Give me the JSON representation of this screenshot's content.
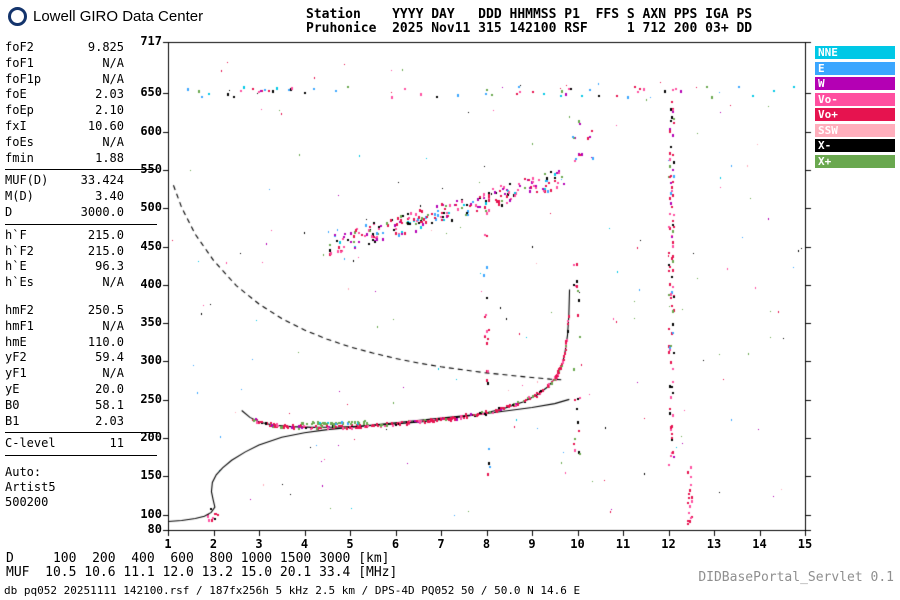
{
  "header": {
    "logo_text": "Lowell GIRO Data Center",
    "line1": "Station    YYYY DAY   DDD HHMMSS P1  FFS S AXN PPS IGA PS",
    "line2": "Pruhonice  2025 Nov11 315 142100 RSF     1 712 200 03+ DD"
  },
  "params": {
    "groups": [
      {
        "rule_after": true,
        "gap_after": false,
        "rows": [
          {
            "label": "foF2",
            "value": "9.825"
          },
          {
            "label": "foF1",
            "value": "N/A"
          },
          {
            "label": "foF1p",
            "value": "N/A"
          },
          {
            "label": "foE",
            "value": "2.03"
          },
          {
            "label": "foEp",
            "value": "2.10"
          },
          {
            "label": "fxI",
            "value": "10.60"
          },
          {
            "label": "foEs",
            "value": "N/A"
          },
          {
            "label": "fmin",
            "value": "1.88"
          }
        ]
      },
      {
        "rule_after": true,
        "gap_after": false,
        "rows": [
          {
            "label": "MUF(D)",
            "value": "33.424"
          },
          {
            "label": "M(D)",
            "value": "3.40"
          },
          {
            "label": "D",
            "value": "3000.0"
          }
        ]
      },
      {
        "rule_after": false,
        "gap_after": true,
        "rows": [
          {
            "label": "h`F",
            "value": "215.0"
          },
          {
            "label": "h`F2",
            "value": "215.0"
          },
          {
            "label": "h`E",
            "value": "96.3"
          },
          {
            "label": "h`Es",
            "value": "N/A"
          }
        ]
      },
      {
        "rule_after": true,
        "gap_after": false,
        "rows": [
          {
            "label": "hmF2",
            "value": "250.5"
          },
          {
            "label": "hmF1",
            "value": "N/A"
          },
          {
            "label": "hmE",
            "value": "110.0"
          },
          {
            "label": "yF2",
            "value": "59.4"
          },
          {
            "label": "yF1",
            "value": "N/A"
          },
          {
            "label": "yE",
            "value": "20.0"
          },
          {
            "label": "B0",
            "value": "58.1"
          },
          {
            "label": "B1",
            "value": "2.03"
          }
        ]
      },
      {
        "rule_after": true,
        "gap_after": false,
        "rows": [
          {
            "label": "C-level",
            "value": "11"
          }
        ]
      }
    ],
    "auto_label": "Auto:",
    "auto_lines": [
      "Artist5",
      "500200"
    ]
  },
  "legend": {
    "items": [
      {
        "label": "NNE",
        "color": "#00c8e6"
      },
      {
        "label": "E",
        "color": "#3ba6ff"
      },
      {
        "label": "W",
        "color": "#b400b4"
      },
      {
        "label": "Vo-",
        "color": "#ff4fa0"
      },
      {
        "label": "Vo+",
        "color": "#e6134f"
      },
      {
        "label": "SSW",
        "color": "#ffaebc"
      },
      {
        "label": "X-",
        "color": "#000000"
      },
      {
        "label": "X+",
        "color": "#6aa84f"
      }
    ]
  },
  "footer": {
    "d_row": {
      "label": "D",
      "values": [
        "100",
        "200",
        "400",
        "600",
        "800",
        "1000",
        "1500",
        "3000"
      ],
      "unit": "[km]"
    },
    "muf_row": {
      "label": "MUF",
      "values": [
        "10.5",
        "10.6",
        "11.1",
        "12.0",
        "13.2",
        "15.0",
        "20.1",
        "33.4"
      ],
      "unit": "[MHz]"
    },
    "info_line": "db pq052 20251111 142100.rsf / 187fx256h 5 kHz 2.5 km / DPS-4D PQ052 50 / 50.0 N 14.6 E",
    "servlet_label": "DIDBasePortal_Servlet 0.1"
  },
  "chart_data": {
    "type": "scatter",
    "x_unit": "MHz",
    "y_unit": "km",
    "xlim": [
      1,
      15
    ],
    "ylim": [
      80,
      717
    ],
    "x_ticks": [
      1,
      2,
      3,
      4,
      5,
      6,
      7,
      8,
      9,
      10,
      11,
      12,
      13,
      14,
      15
    ],
    "y_ticks": [
      80,
      100,
      150,
      200,
      250,
      300,
      350,
      400,
      450,
      500,
      550,
      600,
      650,
      717
    ],
    "grid": false,
    "legend_position": "outside-right-top",
    "curves": [
      {
        "name": "true-height-profile",
        "style": "solid",
        "points": [
          [
            1.0,
            91
          ],
          [
            1.3,
            92.5
          ],
          [
            1.6,
            95
          ],
          [
            1.8,
            98
          ],
          [
            1.95,
            103
          ],
          [
            2.03,
            110
          ],
          [
            1.99,
            120
          ],
          [
            1.955,
            130
          ],
          [
            1.975,
            142
          ],
          [
            2.06,
            152
          ],
          [
            2.2,
            161
          ],
          [
            2.4,
            171
          ],
          [
            2.7,
            182
          ],
          [
            3.0,
            191
          ],
          [
            3.5,
            201
          ],
          [
            4.0,
            207
          ],
          [
            4.5,
            211
          ],
          [
            5.0,
            214
          ],
          [
            6.0,
            220
          ],
          [
            7.0,
            226
          ],
          [
            8.0,
            232
          ],
          [
            9.0,
            240
          ],
          [
            9.5,
            245
          ],
          [
            9.82,
            250.5
          ]
        ]
      },
      {
        "name": "otrace-fit",
        "style": "solid",
        "points": [
          [
            2.62,
            236
          ],
          [
            2.8,
            227
          ],
          [
            3.0,
            221
          ],
          [
            3.3,
            217
          ],
          [
            3.7,
            215
          ],
          [
            4.2,
            214
          ],
          [
            4.8,
            214.5
          ],
          [
            5.4,
            216
          ],
          [
            6.0,
            218.5
          ],
          [
            6.6,
            221.5
          ],
          [
            7.1,
            225
          ],
          [
            7.6,
            229
          ],
          [
            8.0,
            233
          ],
          [
            8.4,
            239
          ],
          [
            8.8,
            247
          ],
          [
            9.1,
            256
          ],
          [
            9.35,
            267
          ],
          [
            9.55,
            281
          ],
          [
            9.65,
            294
          ],
          [
            9.72,
            310
          ],
          [
            9.78,
            334
          ],
          [
            9.81,
            360
          ],
          [
            9.825,
            394
          ]
        ]
      },
      {
        "name": "muf3000-transmission",
        "style": "dashed",
        "points": [
          [
            1.12,
            530
          ],
          [
            1.3,
            501
          ],
          [
            1.6,
            466
          ],
          [
            2.0,
            432
          ],
          [
            2.5,
            399
          ],
          [
            3.0,
            375
          ],
          [
            3.5,
            356
          ],
          [
            4.0,
            341
          ],
          [
            4.5,
            329
          ],
          [
            5.0,
            319
          ],
          [
            5.5,
            311
          ],
          [
            6.0,
            304
          ],
          [
            6.5,
            298
          ],
          [
            7.0,
            293
          ],
          [
            7.5,
            289
          ],
          [
            8.0,
            285
          ],
          [
            8.5,
            282
          ],
          [
            9.0,
            279
          ],
          [
            9.4,
            277
          ],
          [
            9.7,
            276
          ]
        ]
      }
    ],
    "echo_bands": [
      {
        "name": "F-region-O-trace-echoes",
        "follow": "otrace-fit",
        "f_min": 2.85,
        "f_max": 9.82,
        "count": 260,
        "jitter": 2.2,
        "size": 2,
        "colors": [
          [
            "#e6134f",
            55
          ],
          [
            "#ff4fa0",
            18
          ],
          [
            "#b400b4",
            9
          ],
          [
            "#000000",
            8
          ],
          [
            "#6aa84f",
            10
          ]
        ]
      },
      {
        "name": "F-trace-asymptote-echoes",
        "follow": "otrace-fit",
        "f_min": 9.5,
        "f_max": 9.82,
        "count": 45,
        "jitter": 3,
        "size": 2,
        "colors": [
          [
            "#e6134f",
            60
          ],
          [
            "#ff4fa0",
            20
          ],
          [
            "#000000",
            10
          ],
          [
            "#6aa84f",
            10
          ]
        ]
      },
      {
        "name": "X-trace-segment",
        "follow": "otrace-fit",
        "offset": 5,
        "f_min": 3.9,
        "f_max": 5.4,
        "count": 45,
        "jitter": 1.5,
        "size": 2,
        "colors": [
          [
            "#6aa84f",
            70
          ],
          [
            "#3ba6ff",
            15
          ],
          [
            "#00c8e6",
            15
          ]
        ]
      }
    ],
    "clusters": [
      {
        "name": "spread-F-oblique-band",
        "f_min": 4.55,
        "f_max": 9.7,
        "h_at_fmin": 451,
        "h_at_fmax": 540,
        "spread": 26,
        "count": 240,
        "size": 2,
        "colors": [
          [
            "#ff4fa0",
            26
          ],
          [
            "#e6134f",
            22
          ],
          [
            "#b400b4",
            16
          ],
          [
            "#3ba6ff",
            10
          ],
          [
            "#00c8e6",
            6
          ],
          [
            "#6aa84f",
            9
          ],
          [
            "#000000",
            11
          ]
        ]
      },
      {
        "name": "rfi-column-12.1",
        "f_min": 12.01,
        "f_max": 12.13,
        "h_at_fmin": 400,
        "h_at_fmax": 400,
        "spread": 480,
        "count": 95,
        "size": 2,
        "colors": [
          [
            "#e6134f",
            40
          ],
          [
            "#ff4fa0",
            20
          ],
          [
            "#000000",
            15
          ],
          [
            "#b400b4",
            10
          ],
          [
            "#6aa84f",
            8
          ],
          [
            "#3ba6ff",
            7
          ]
        ]
      },
      {
        "name": "rfi-column-12.45",
        "f_min": 12.42,
        "f_max": 12.52,
        "h_at_fmin": 127,
        "h_at_fmax": 127,
        "spread": 82,
        "count": 18,
        "size": 2,
        "colors": [
          [
            "#ff4fa0",
            55
          ],
          [
            "#e6134f",
            45
          ]
        ]
      },
      {
        "name": "rfi-column-10",
        "f_min": 9.92,
        "f_max": 10.05,
        "h_at_fmin": 300,
        "h_at_fmax": 300,
        "spread": 260,
        "count": 22,
        "size": 2,
        "colors": [
          [
            "#e6134f",
            35
          ],
          [
            "#000000",
            25
          ],
          [
            "#6aa84f",
            20
          ],
          [
            "#ff4fa0",
            20
          ]
        ]
      },
      {
        "name": "rfi-column-8",
        "f_min": 7.95,
        "f_max": 8.08,
        "h_at_fmin": 330,
        "h_at_fmax": 330,
        "spread": 380,
        "count": 26,
        "size": 2,
        "colors": [
          [
            "#e6134f",
            30
          ],
          [
            "#ff4fa0",
            20
          ],
          [
            "#000000",
            20
          ],
          [
            "#3ba6ff",
            15
          ],
          [
            "#6aa84f",
            15
          ]
        ]
      },
      {
        "name": "rfi-row-650km",
        "f_min": 1.05,
        "f_max": 14.9,
        "h_at_fmin": 652,
        "h_at_fmax": 652,
        "spread": 14,
        "count": 60,
        "size": 2,
        "colors": [
          [
            "#e6134f",
            18
          ],
          [
            "#ff4fa0",
            15
          ],
          [
            "#6aa84f",
            15
          ],
          [
            "#3ba6ff",
            14
          ],
          [
            "#00c8e6",
            10
          ],
          [
            "#000000",
            16
          ],
          [
            "#b400b4",
            12
          ]
        ]
      },
      {
        "name": "e-region-echoes",
        "f_min": 1.88,
        "f_max": 2.12,
        "h_at_fmin": 100,
        "h_at_fmax": 100,
        "spread": 18,
        "count": 10,
        "size": 2,
        "colors": [
          [
            "#e6134f",
            50
          ],
          [
            "#ff4fa0",
            30
          ],
          [
            "#000000",
            20
          ]
        ]
      },
      {
        "name": "cluster-10mhz-600km",
        "f_min": 9.88,
        "f_max": 10.35,
        "h_at_fmin": 590,
        "h_at_fmax": 590,
        "spread": 60,
        "count": 14,
        "size": 2,
        "colors": [
          [
            "#e6134f",
            30
          ],
          [
            "#b400b4",
            20
          ],
          [
            "#3ba6ff",
            20
          ],
          [
            "#6aa84f",
            15
          ],
          [
            "#ff4fa0",
            15
          ]
        ]
      },
      {
        "name": "background-noise",
        "f_min": 1.03,
        "f_max": 14.95,
        "h_at_fmin": 390,
        "h_at_fmax": 390,
        "spread": 610,
        "count": 180,
        "size": 1,
        "colors": [
          [
            "#e6134f",
            14
          ],
          [
            "#ff4fa0",
            12
          ],
          [
            "#6aa84f",
            16
          ],
          [
            "#3ba6ff",
            14
          ],
          [
            "#00c8e6",
            10
          ],
          [
            "#000000",
            18
          ],
          [
            "#b400b4",
            10
          ],
          [
            "#ffaebc",
            6
          ]
        ]
      }
    ]
  }
}
